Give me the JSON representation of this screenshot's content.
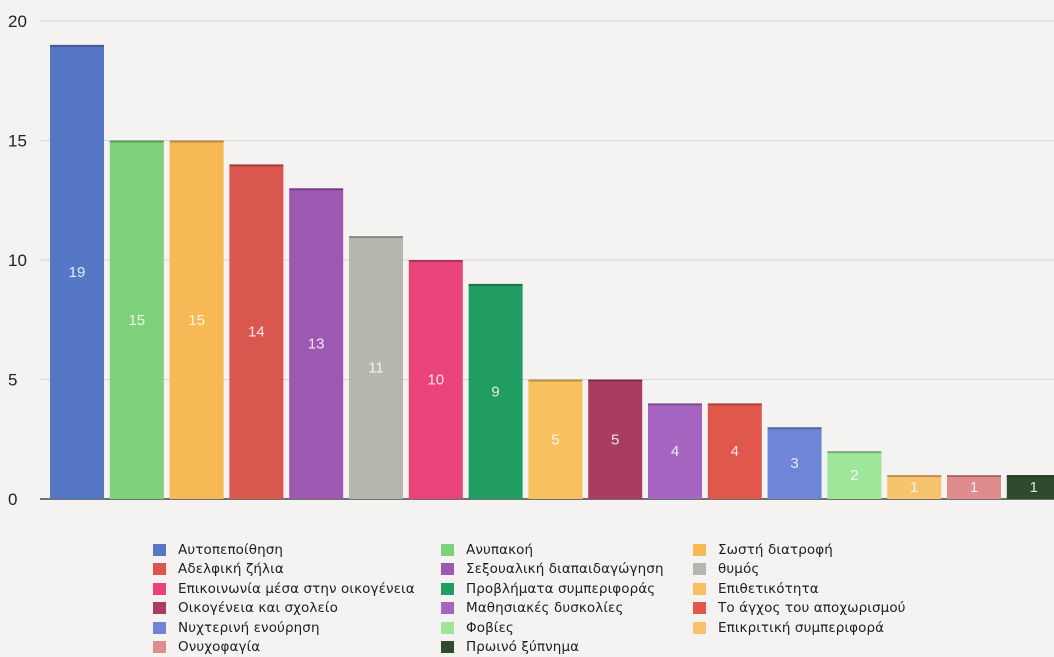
{
  "chart_data": {
    "type": "bar",
    "title": "",
    "xlabel": "",
    "ylabel": "",
    "ylim": [
      0,
      20
    ],
    "yticks": [
      0,
      5,
      10,
      15,
      20
    ],
    "grid": true,
    "legend_position": "bottom",
    "categories": [
      "Αυτοπεποίθηση",
      "Ανυπακοή",
      "Σωστή διατροφή",
      "Αδελφική ζήλια",
      "Σεξουαλική διαπαιδαγώγηση",
      "θυμός",
      "Επικοινωνία μέσα στην οικογένεια",
      "Προβλήματα συμπεριφοράς",
      "Επιθετικότητα",
      "Οικογένεια και σχολείο",
      "Μαθησιακές δυσκολίες",
      "Το άγχος του αποχωρισμού",
      "Νυχτερινή ενούρηση",
      "Φοβίες",
      "Επικριτική συμπεριφορά",
      "Ονυχοφαγία",
      "Πρωινό ξύπνημα"
    ],
    "values": [
      19,
      15,
      15,
      14,
      13,
      11,
      10,
      9,
      5,
      5,
      4,
      4,
      3,
      2,
      1,
      1,
      1
    ],
    "colors": [
      "#5577c6",
      "#7ed07a",
      "#f7b955",
      "#d9574f",
      "#9d58b2",
      "#b5b7af",
      "#e9437a",
      "#219c62",
      "#f9c05e",
      "#a93d60",
      "#a665c0",
      "#e0574c",
      "#6f86d8",
      "#9ee69a",
      "#f8c36e",
      "#e08b8e",
      "#2f4a2c"
    ],
    "value_labels": [
      "19",
      "15",
      "15",
      "14",
      "13",
      "11",
      "10",
      "9",
      "5",
      "5",
      "4",
      "4",
      "3",
      "2",
      "1",
      "1",
      "1"
    ]
  },
  "legend": {
    "columns": [
      [
        {
          "label": "Αυτοπεποίθηση",
          "color": "#5577c6"
        },
        {
          "label": "Αδελφική ζήλια",
          "color": "#d9574f"
        },
        {
          "label": "Επικοινωνία μέσα στην οικογένεια",
          "color": "#e9437a"
        },
        {
          "label": "Οικογένεια και σχολείο",
          "color": "#a93d60"
        },
        {
          "label": "Νυχτερινή ενούρηση",
          "color": "#6f86d8"
        },
        {
          "label": "Ονυχοφαγία",
          "color": "#e08b8e"
        }
      ],
      [
        {
          "label": "Ανυπακοή",
          "color": "#7ed07a"
        },
        {
          "label": "Σεξουαλική διαπαιδαγώγηση",
          "color": "#9d58b2"
        },
        {
          "label": "Προβλήματα συμπεριφοράς",
          "color": "#219c62"
        },
        {
          "label": "Μαθησιακές δυσκολίες",
          "color": "#a665c0"
        },
        {
          "label": "Φοβίες",
          "color": "#9ee69a"
        },
        {
          "label": "Πρωινό ξύπνημα",
          "color": "#2f4a2c"
        }
      ],
      [
        {
          "label": "Σωστή διατροφή",
          "color": "#f7b955"
        },
        {
          "label": "θυμός",
          "color": "#b5b7af"
        },
        {
          "label": "Επιθετικότητα",
          "color": "#f9c05e"
        },
        {
          "label": "Το άγχος του αποχωρισμού",
          "color": "#e0574c"
        },
        {
          "label": "Επικριτική συμπεριφορά",
          "color": "#f8c36e"
        }
      ]
    ]
  }
}
